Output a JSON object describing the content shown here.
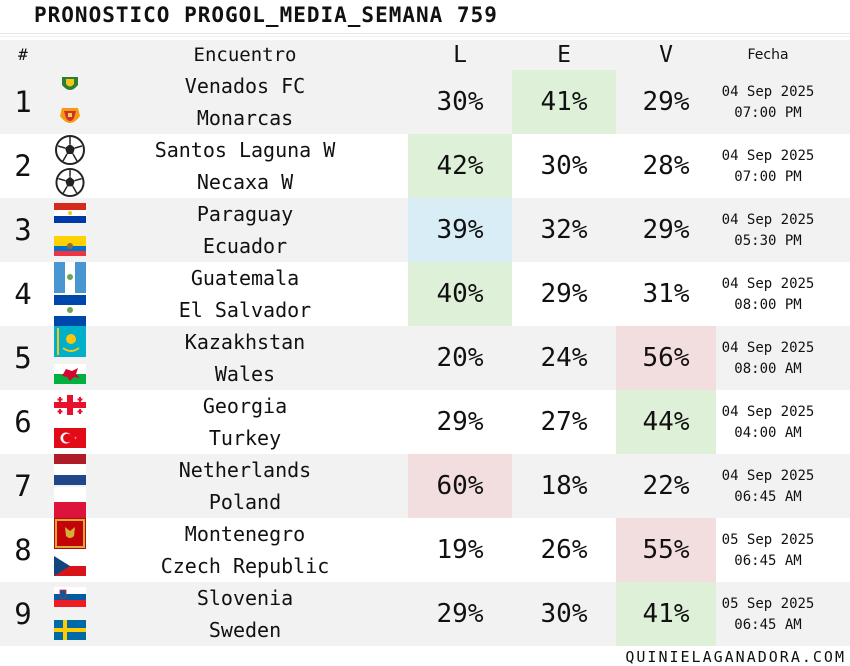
{
  "title": "PRONOSTICO PROGOL_MEDIA_SEMANA 759",
  "header": {
    "num": "#",
    "encuentro": "Encuentro",
    "local": "L",
    "empate": "E",
    "visita": "V",
    "fecha": "Fecha"
  },
  "colors": {
    "green": "#dff0d8",
    "blue": "#d9edf7",
    "red": "#f2dede",
    "row_alt": "#f2f2f2"
  },
  "matches": [
    {
      "num": "1",
      "home": "Venados FC",
      "away": "Monarcas",
      "l": "30%",
      "e": "41%",
      "v": "29%",
      "date": "04 Sep 2025",
      "time": "07:00 PM",
      "highlight": "e",
      "highlight_color": "green",
      "home_icon": "venados-crest-icon",
      "away_icon": "monarcas-crest-icon"
    },
    {
      "num": "2",
      "home": "Santos Laguna W",
      "away": "Necaxa W",
      "l": "42%",
      "e": "30%",
      "v": "28%",
      "date": "04 Sep 2025",
      "time": "07:00 PM",
      "highlight": "l",
      "highlight_color": "green",
      "home_icon": "soccer-ball-icon",
      "away_icon": "soccer-ball-icon"
    },
    {
      "num": "3",
      "home": "Paraguay",
      "away": "Ecuador",
      "l": "39%",
      "e": "32%",
      "v": "29%",
      "date": "04 Sep 2025",
      "time": "05:30 PM",
      "highlight": "l",
      "highlight_color": "blue",
      "home_icon": "paraguay-flag-icon",
      "away_icon": "ecuador-flag-icon"
    },
    {
      "num": "4",
      "home": "Guatemala",
      "away": "El Salvador",
      "l": "40%",
      "e": "29%",
      "v": "31%",
      "date": "04 Sep 2025",
      "time": "08:00 PM",
      "highlight": "l",
      "highlight_color": "green",
      "home_icon": "guatemala-flag-icon",
      "away_icon": "el-salvador-flag-icon"
    },
    {
      "num": "5",
      "home": "Kazakhstan",
      "away": "Wales",
      "l": "20%",
      "e": "24%",
      "v": "56%",
      "date": "04 Sep 2025",
      "time": "08:00 AM",
      "highlight": "v",
      "highlight_color": "red",
      "home_icon": "kazakhstan-flag-icon",
      "away_icon": "wales-flag-icon"
    },
    {
      "num": "6",
      "home": "Georgia",
      "away": "Turkey",
      "l": "29%",
      "e": "27%",
      "v": "44%",
      "date": "04 Sep 2025",
      "time": "04:00 AM",
      "highlight": "v",
      "highlight_color": "green",
      "home_icon": "georgia-flag-icon",
      "away_icon": "turkey-flag-icon"
    },
    {
      "num": "7",
      "home": "Netherlands",
      "away": "Poland",
      "l": "60%",
      "e": "18%",
      "v": "22%",
      "date": "04 Sep 2025",
      "time": "06:45 AM",
      "highlight": "l",
      "highlight_color": "red",
      "home_icon": "netherlands-flag-icon",
      "away_icon": "poland-flag-icon"
    },
    {
      "num": "8",
      "home": "Montenegro",
      "away": "Czech Republic",
      "l": "19%",
      "e": "26%",
      "v": "55%",
      "date": "05 Sep 2025",
      "time": "06:45 AM",
      "highlight": "v",
      "highlight_color": "red",
      "home_icon": "montenegro-flag-icon",
      "away_icon": "czech-flag-icon"
    },
    {
      "num": "9",
      "home": "Slovenia",
      "away": "Sweden",
      "l": "29%",
      "e": "30%",
      "v": "41%",
      "date": "05 Sep 2025",
      "time": "06:45 AM",
      "highlight": "v",
      "highlight_color": "green",
      "home_icon": "slovenia-flag-icon",
      "away_icon": "sweden-flag-icon"
    }
  ],
  "footer": "QUINIELAGANADORA.COM"
}
